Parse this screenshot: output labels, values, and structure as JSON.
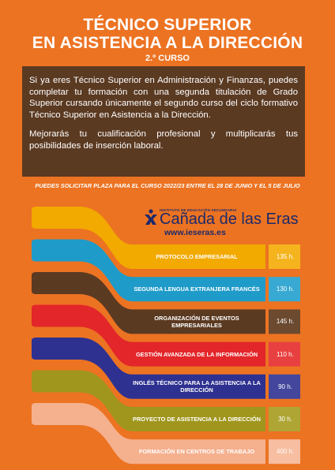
{
  "header": {
    "title_line1": "TÉCNICO SUPERIOR",
    "title_line2": "EN ASISTENCIA A LA DIRECCIÓN",
    "subtitle": "2.º CURSO"
  },
  "info": {
    "paragraph1": "Si ya eres Técnico Superior en Administración y Finanzas, puedes completar tu formación con una segunda titulación de Grado Superior cursando únicamente el segundo curso del ciclo formativo Técnico Superior en Asistencia a la Dirección.",
    "paragraph2": "Mejorarás tu cualificación profesional y multiplicarás tus posibilidades de inserción laboral.",
    "notice": "PUEDES SOLICITAR PLAZA PARA EL CURSO 2022/23 ENTRE EL 28 DE JUNIO Y EL 5 DE JULIO"
  },
  "logo": {
    "small_text": "INSTITUTO DE EDUCACIÓN SECUNDARIA",
    "name": "Cañada de las Eras",
    "website": "www.ieseras.es"
  },
  "modules": [
    {
      "label": "PROTOCOLO EMPRESARIAL",
      "hours": "135 h.",
      "color": "#f2a900",
      "hours_color": "#f5b41e",
      "text_color": "#ffffff"
    },
    {
      "label": "SEGUNDA LENGUA EXTRANJERA FRANCÉS",
      "hours": "130 h.",
      "color": "#1f9bc9",
      "hours_color": "#38a9d2",
      "text_color": "#ffffff"
    },
    {
      "label": "ORGANIZACIÓN DE EVENTOS EMPRESARIALES",
      "hours": "145 h.",
      "color": "#5b3a22",
      "hours_color": "#6b4a30",
      "text_color": "#ffffff"
    },
    {
      "label": "GESTIÓN AVANZADA DE LA INFORMACIÓN",
      "hours": "110 h.",
      "color": "#e3262a",
      "hours_color": "#e84040",
      "text_color": "#ffffff"
    },
    {
      "label": "INGLÉS TÉCNICO PARA LA ASISTENCIA A LA DIRECCIÓN",
      "hours": "90 h.",
      "color": "#2e3190",
      "hours_color": "#43469c",
      "text_color": "#ffffff"
    },
    {
      "label": "PROYECTO DE ASISTENCIA A LA DIRECCIÓN",
      "hours": "30 h.",
      "color": "#a0961d",
      "hours_color": "#aea534",
      "text_color": "#ffffff"
    },
    {
      "label": "FORMACIÓN EN CENTROS DE TRABAJO",
      "hours": "400 h.",
      "color": "#f5b08e",
      "hours_color": "#f7bea1",
      "text_color": "#ffffff"
    }
  ]
}
